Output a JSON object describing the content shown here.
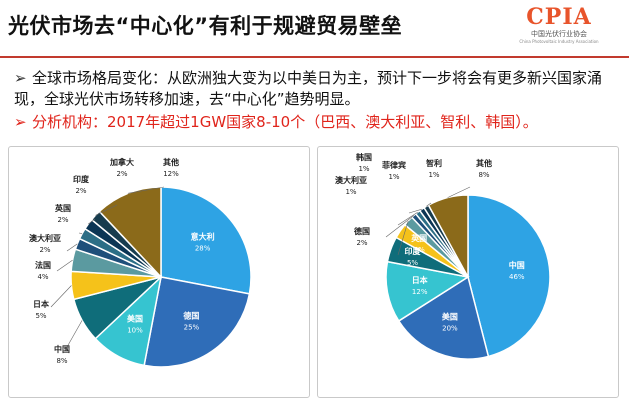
{
  "header": {
    "title": "光伏市场去“中心化”有利于规避贸易壁垒",
    "logo_text": "CPIA",
    "logo_sub": "中国光伏行业协会",
    "logo_sub2": "China Photovoltaic Industry Association"
  },
  "bullets": [
    {
      "arrow": "➢",
      "text": "全球市场格局变化：从欧洲独大变为以中美日为主，预计下一步将会有更多新兴国家涌现，全球光伏市场转移加速，去“中心化”趋势明显。"
    },
    {
      "arrow": "➢",
      "text": "分析机构：2017年超过1GW国家8-10个（巴西、澳大利亚、智利、韩国）。"
    }
  ],
  "chart_data": [
    {
      "type": "pie",
      "title": "",
      "categories": [
        "意大利",
        "德国",
        "美国",
        "中国",
        "日本",
        "法国",
        "澳大利亚",
        "英国",
        "印度",
        "加拿大",
        "其他"
      ],
      "values": [
        28,
        25,
        10,
        8,
        5,
        4,
        2,
        2,
        2,
        2,
        12
      ],
      "labels": [
        "28%",
        "25%",
        "10%",
        "8%",
        "5%",
        "4%",
        "2%",
        "2%",
        "2%",
        "2%",
        "12%"
      ],
      "colors": [
        "#2ea3e4",
        "#2f6db8",
        "#36c4d0",
        "#0f6d7a",
        "#f5c21a",
        "#5b9aa0",
        "#1e4f7a",
        "#2c6e86",
        "#0b3554",
        "#173c4e",
        "#8b6a1a"
      ]
    },
    {
      "type": "pie",
      "title": "",
      "categories": [
        "中国",
        "美国",
        "日本",
        "印度",
        "英国",
        "德国",
        "澳大利亚",
        "韩国",
        "菲律宾",
        "智利",
        "其他"
      ],
      "values": [
        46,
        20,
        12,
        5,
        3,
        2,
        1,
        1,
        1,
        1,
        8
      ],
      "labels": [
        "46%",
        "20%",
        "12%",
        "5%",
        "3%",
        "2%",
        "1%",
        "1%",
        "1%",
        "1%",
        "8%"
      ],
      "colors": [
        "#2ea3e4",
        "#2f6db8",
        "#36c4d0",
        "#0f6d7a",
        "#f5c21a",
        "#5b9aa0",
        "#1e4f7a",
        "#2c6e86",
        "#0b3554",
        "#173c4e",
        "#8b6a1a"
      ]
    }
  ]
}
